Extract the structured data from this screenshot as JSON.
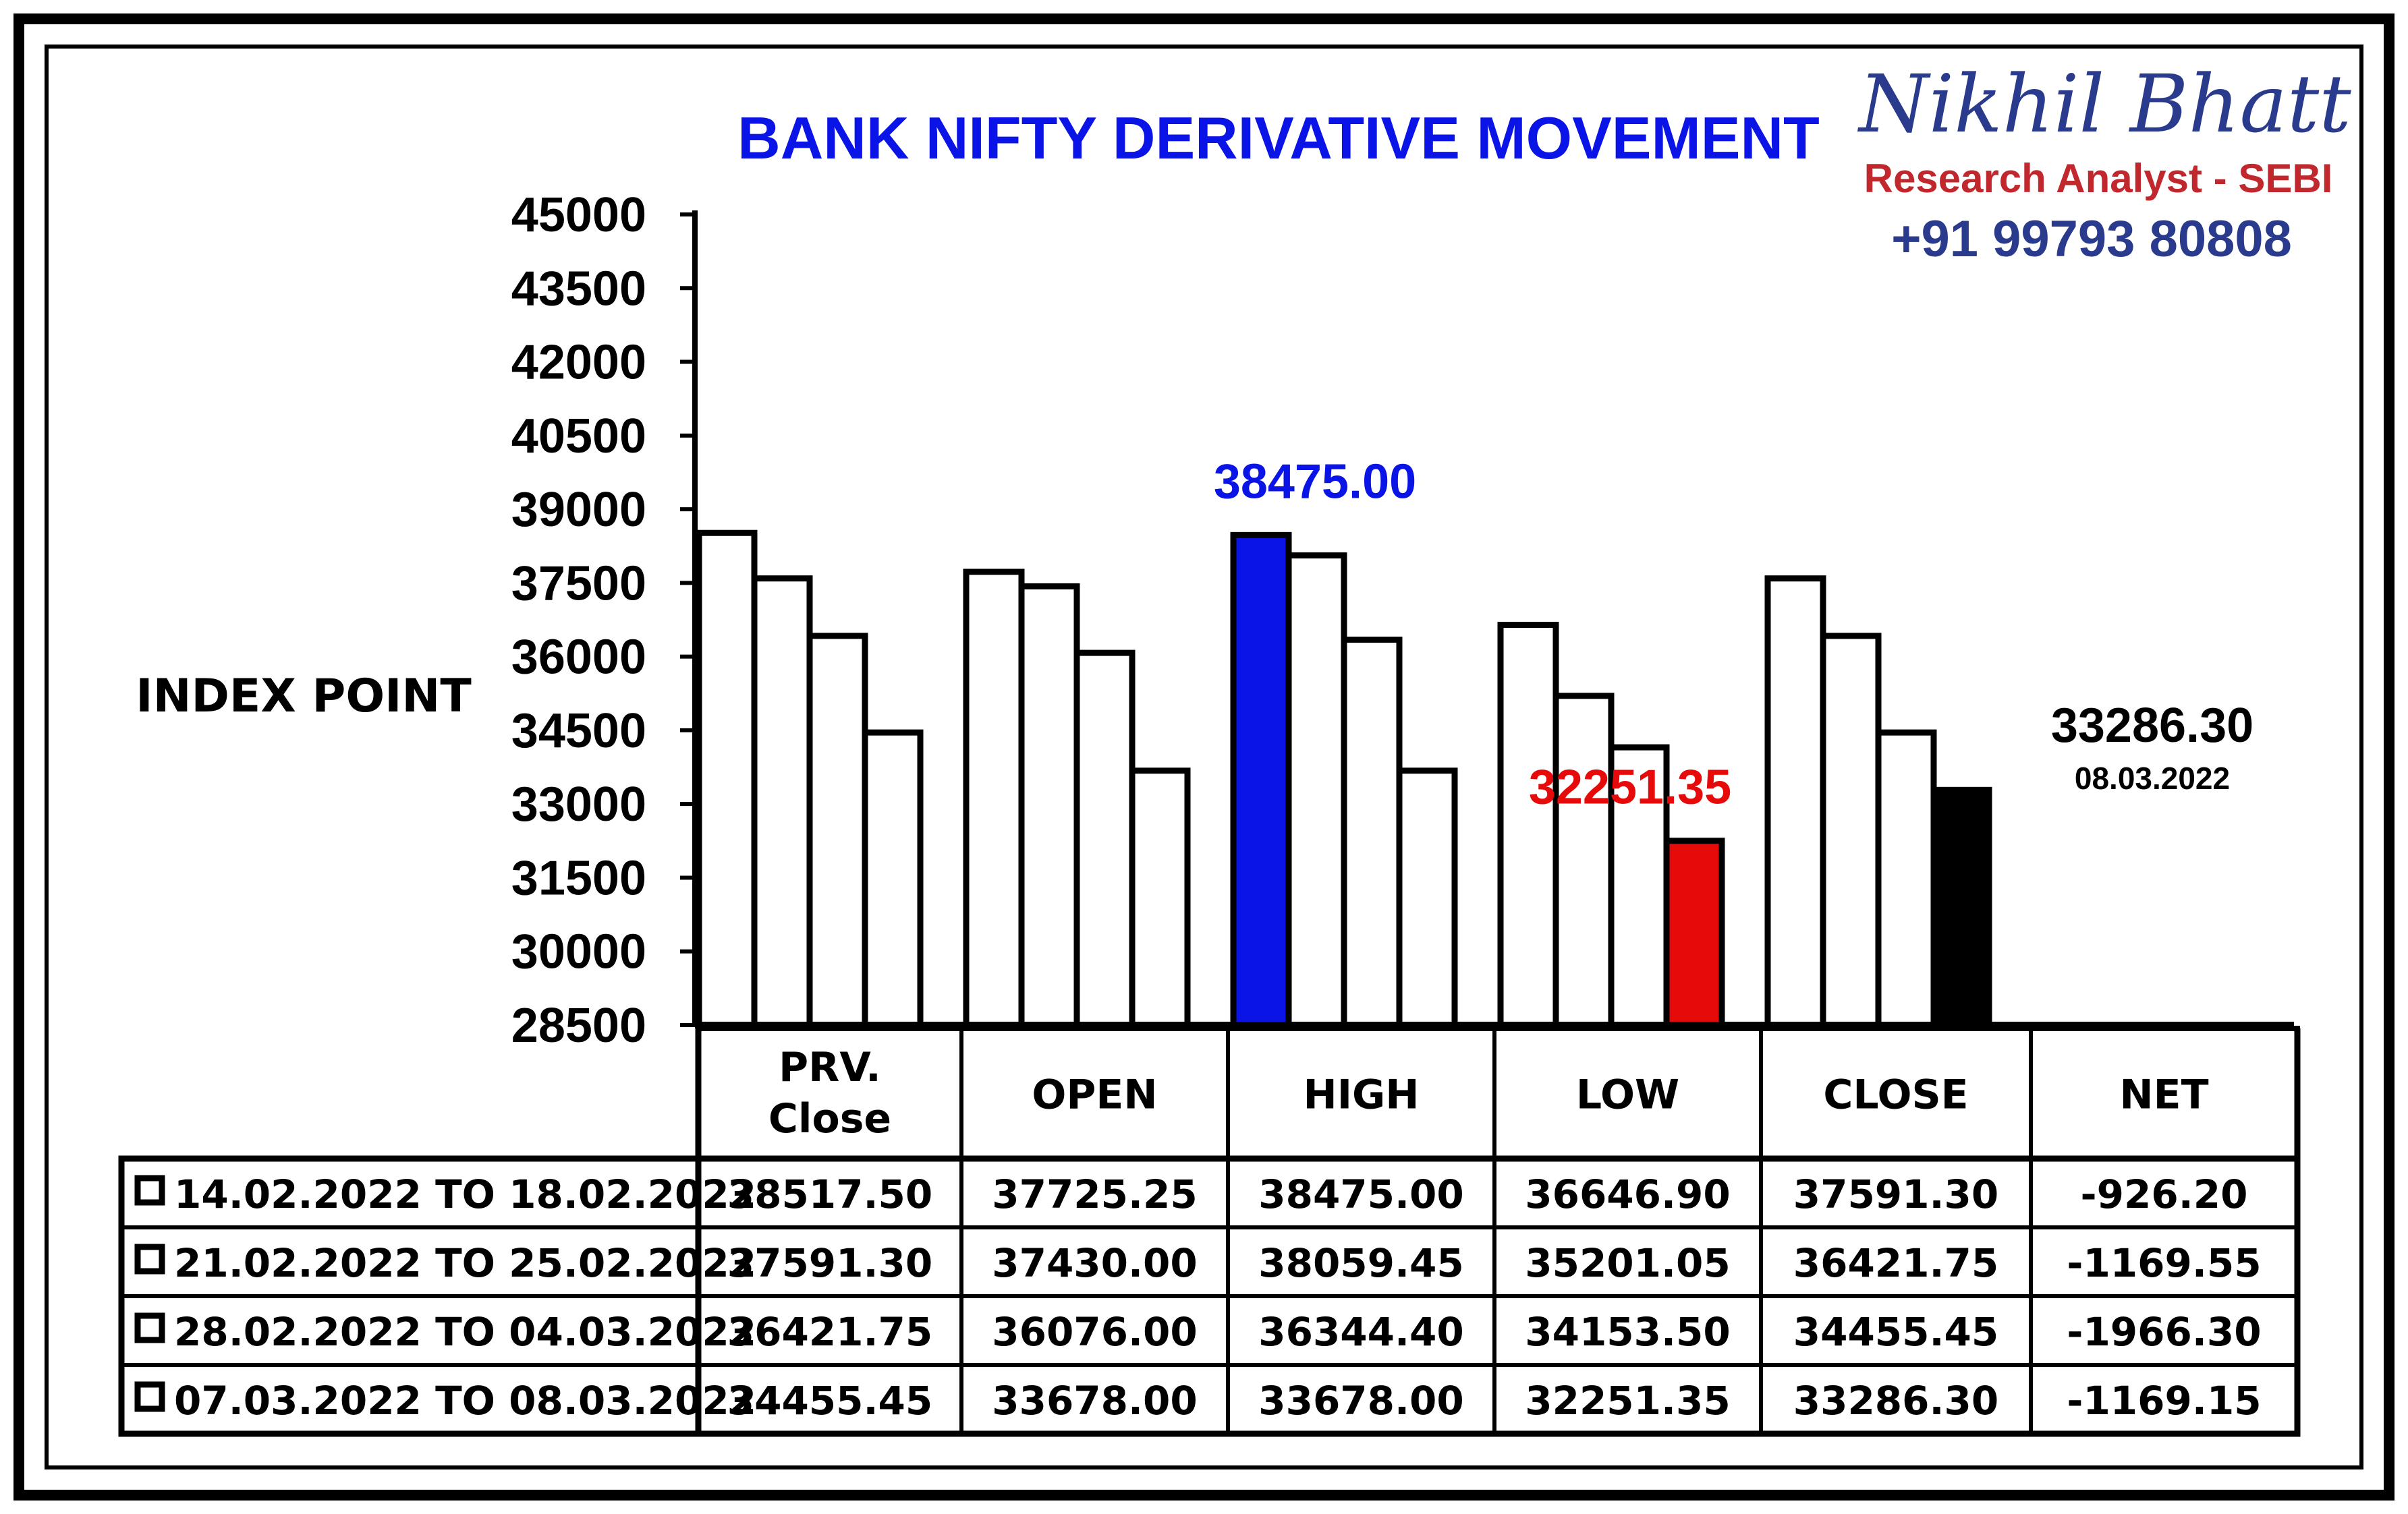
{
  "chart_data": {
    "type": "bar",
    "title": "BANK NIFTY DERIVATIVE MOVEMENT",
    "ylabel": "INDEX POINT",
    "ylim": [
      28500,
      45000
    ],
    "yticks": [
      "45000",
      "43500",
      "42000",
      "40500",
      "39000",
      "37500",
      "36000",
      "34500",
      "33000",
      "31500",
      "30000",
      "28500"
    ],
    "categories": [
      "PRV.\nClose",
      "OPEN",
      "HIGH",
      "LOW",
      "CLOSE"
    ],
    "table_columns": [
      "PRV.\nClose",
      "OPEN",
      "HIGH",
      "LOW",
      "CLOSE",
      "NET"
    ],
    "series": [
      {
        "name": "14.02.2022 TO 18.02.2022",
        "values": [
          38517.5,
          37725.25,
          38475.0,
          36646.9,
          37591.3
        ],
        "net": "-926.20",
        "cells": [
          "38517.50",
          "37725.25",
          "38475.00",
          "36646.90",
          "37591.30",
          "-926.20"
        ]
      },
      {
        "name": "21.02.2022 TO 25.02.2022",
        "values": [
          37591.3,
          37430.0,
          38059.45,
          35201.05,
          36421.75
        ],
        "net": "-1169.55",
        "cells": [
          "37591.30",
          "37430.00",
          "38059.45",
          "35201.05",
          "36421.75",
          "-1169.55"
        ]
      },
      {
        "name": "28.02.2022 TO 04.03.2022",
        "values": [
          36421.75,
          36076.0,
          36344.4,
          34153.5,
          34455.45
        ],
        "net": "-1966.30",
        "cells": [
          "36421.75",
          "36076.00",
          "36344.40",
          "34153.50",
          "34455.45",
          "-1966.30"
        ]
      },
      {
        "name": "07.03.2022 TO 08.03.2022",
        "values": [
          34455.45,
          33678.0,
          33678.0,
          32251.35,
          33286.3
        ],
        "net": "-1169.15",
        "cells": [
          "34455.45",
          "33678.00",
          "33678.00",
          "32251.35",
          "33286.30",
          "-1169.15"
        ]
      }
    ],
    "highlights": [
      {
        "category": 2,
        "series": 0,
        "color": "#0a14e6",
        "label": "38475.00"
      },
      {
        "category": 3,
        "series": 3,
        "color": "#e60a0a",
        "label": "32251.35"
      },
      {
        "category": 4,
        "series": 3,
        "color": "#000000",
        "label": "33286.30",
        "sublabel": "08.03.2022"
      }
    ]
  },
  "branding": {
    "name": "Nikhil Bhatt",
    "role": "Research Analyst - SEBI",
    "phone": "+91 99793 80808"
  },
  "colors": {
    "title": "#0a14e6",
    "high": "#0a14e6",
    "low": "#e60a0a",
    "close": "#000000",
    "bar": "#ffffff"
  }
}
